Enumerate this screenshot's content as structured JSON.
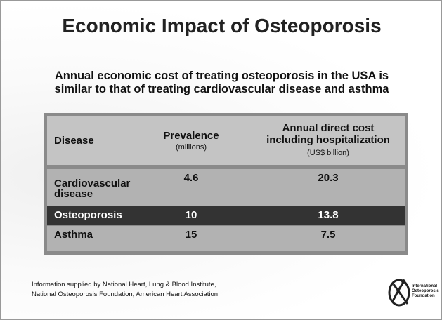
{
  "title": "Economic Impact of Osteoporosis",
  "subtitle": [
    "Annual economic cost of treating osteoporosis in the USA is",
    "similar to that of treating cardiovascular disease and asthma"
  ],
  "table": {
    "columns": [
      {
        "label": [
          "Disease"
        ]
      },
      {
        "label": [
          "Prevalence"
        ],
        "unit": "(millions)"
      },
      {
        "label": [
          "Annual direct cost",
          "including hospitalization"
        ],
        "unit": "(US$ billion)"
      }
    ],
    "rows": [
      [
        "Cardiovascular disease",
        4.6,
        20.3
      ],
      [
        "Osteoporosis",
        10,
        13.8
      ],
      [
        "Asthma",
        15,
        7.5
      ]
    ]
  },
  "footer": {
    "source": [
      "Information supplied by National Heart, Lung & Blood Institute,",
      "National Osteoporosis Foundation, American Heart Association"
    ],
    "logo": [
      "International",
      "Osteoporosis",
      "Foundation"
    ]
  }
}
